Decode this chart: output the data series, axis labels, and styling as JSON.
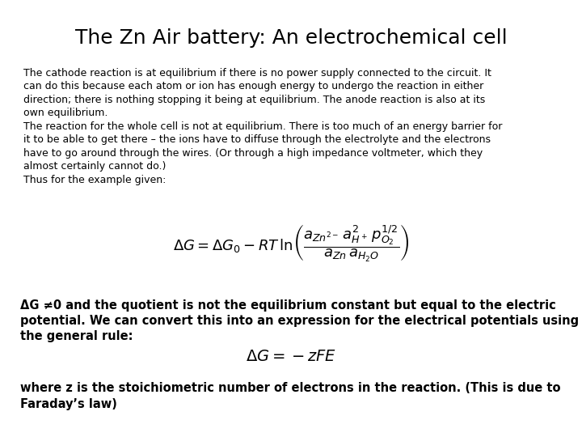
{
  "title": "The Zn Air battery: An electrochemical cell",
  "title_fontsize": 18,
  "body_text": "The cathode reaction is at equilibrium if there is no power supply connected to the circuit. It\ncan do this because each atom or ion has enough energy to undergo the reaction in either\ndirection; there is nothing stopping it being at equilibrium. The anode reaction is also at its\nown equilibrium.\nThe reaction for the whole cell is not at equilibrium. There is too much of an energy barrier for\nit to be able to get there – the ions have to diffuse through the electrolyte and the electrons\nhave to go around through the wires. (Or through a high impedance voltmeter, which they\nalmost certainly cannot do.)\nThus for the example given:",
  "body_fontsize": 9.0,
  "formula1": "$\\Delta G = \\Delta G_0 - RT\\,\\mathrm{ln}\\left(\\dfrac{a_{Zn^{2-}}\\,a_{H^+}^{2}\\,p_{O_2}^{1/2}}{a_{Zn}\\,a_{H_2O}}\\right)$",
  "formula1_fontsize": 13,
  "text_dG": "ΔG ≠0 and the quotient is not the equilibrium constant but equal to the electric\npotential. We can convert this into an expression for the electrical potentials using\nthe general rule:",
  "text_dG_fontsize": 10.5,
  "formula2": "$\\Delta G = -zFE$",
  "formula2_fontsize": 14,
  "text_where": "where z is the stoichiometric number of electrons in the reaction. (This is due to\nFaraday’s law)",
  "text_where_fontsize": 10.5,
  "bg_color": "#ffffff",
  "text_color": "#000000"
}
